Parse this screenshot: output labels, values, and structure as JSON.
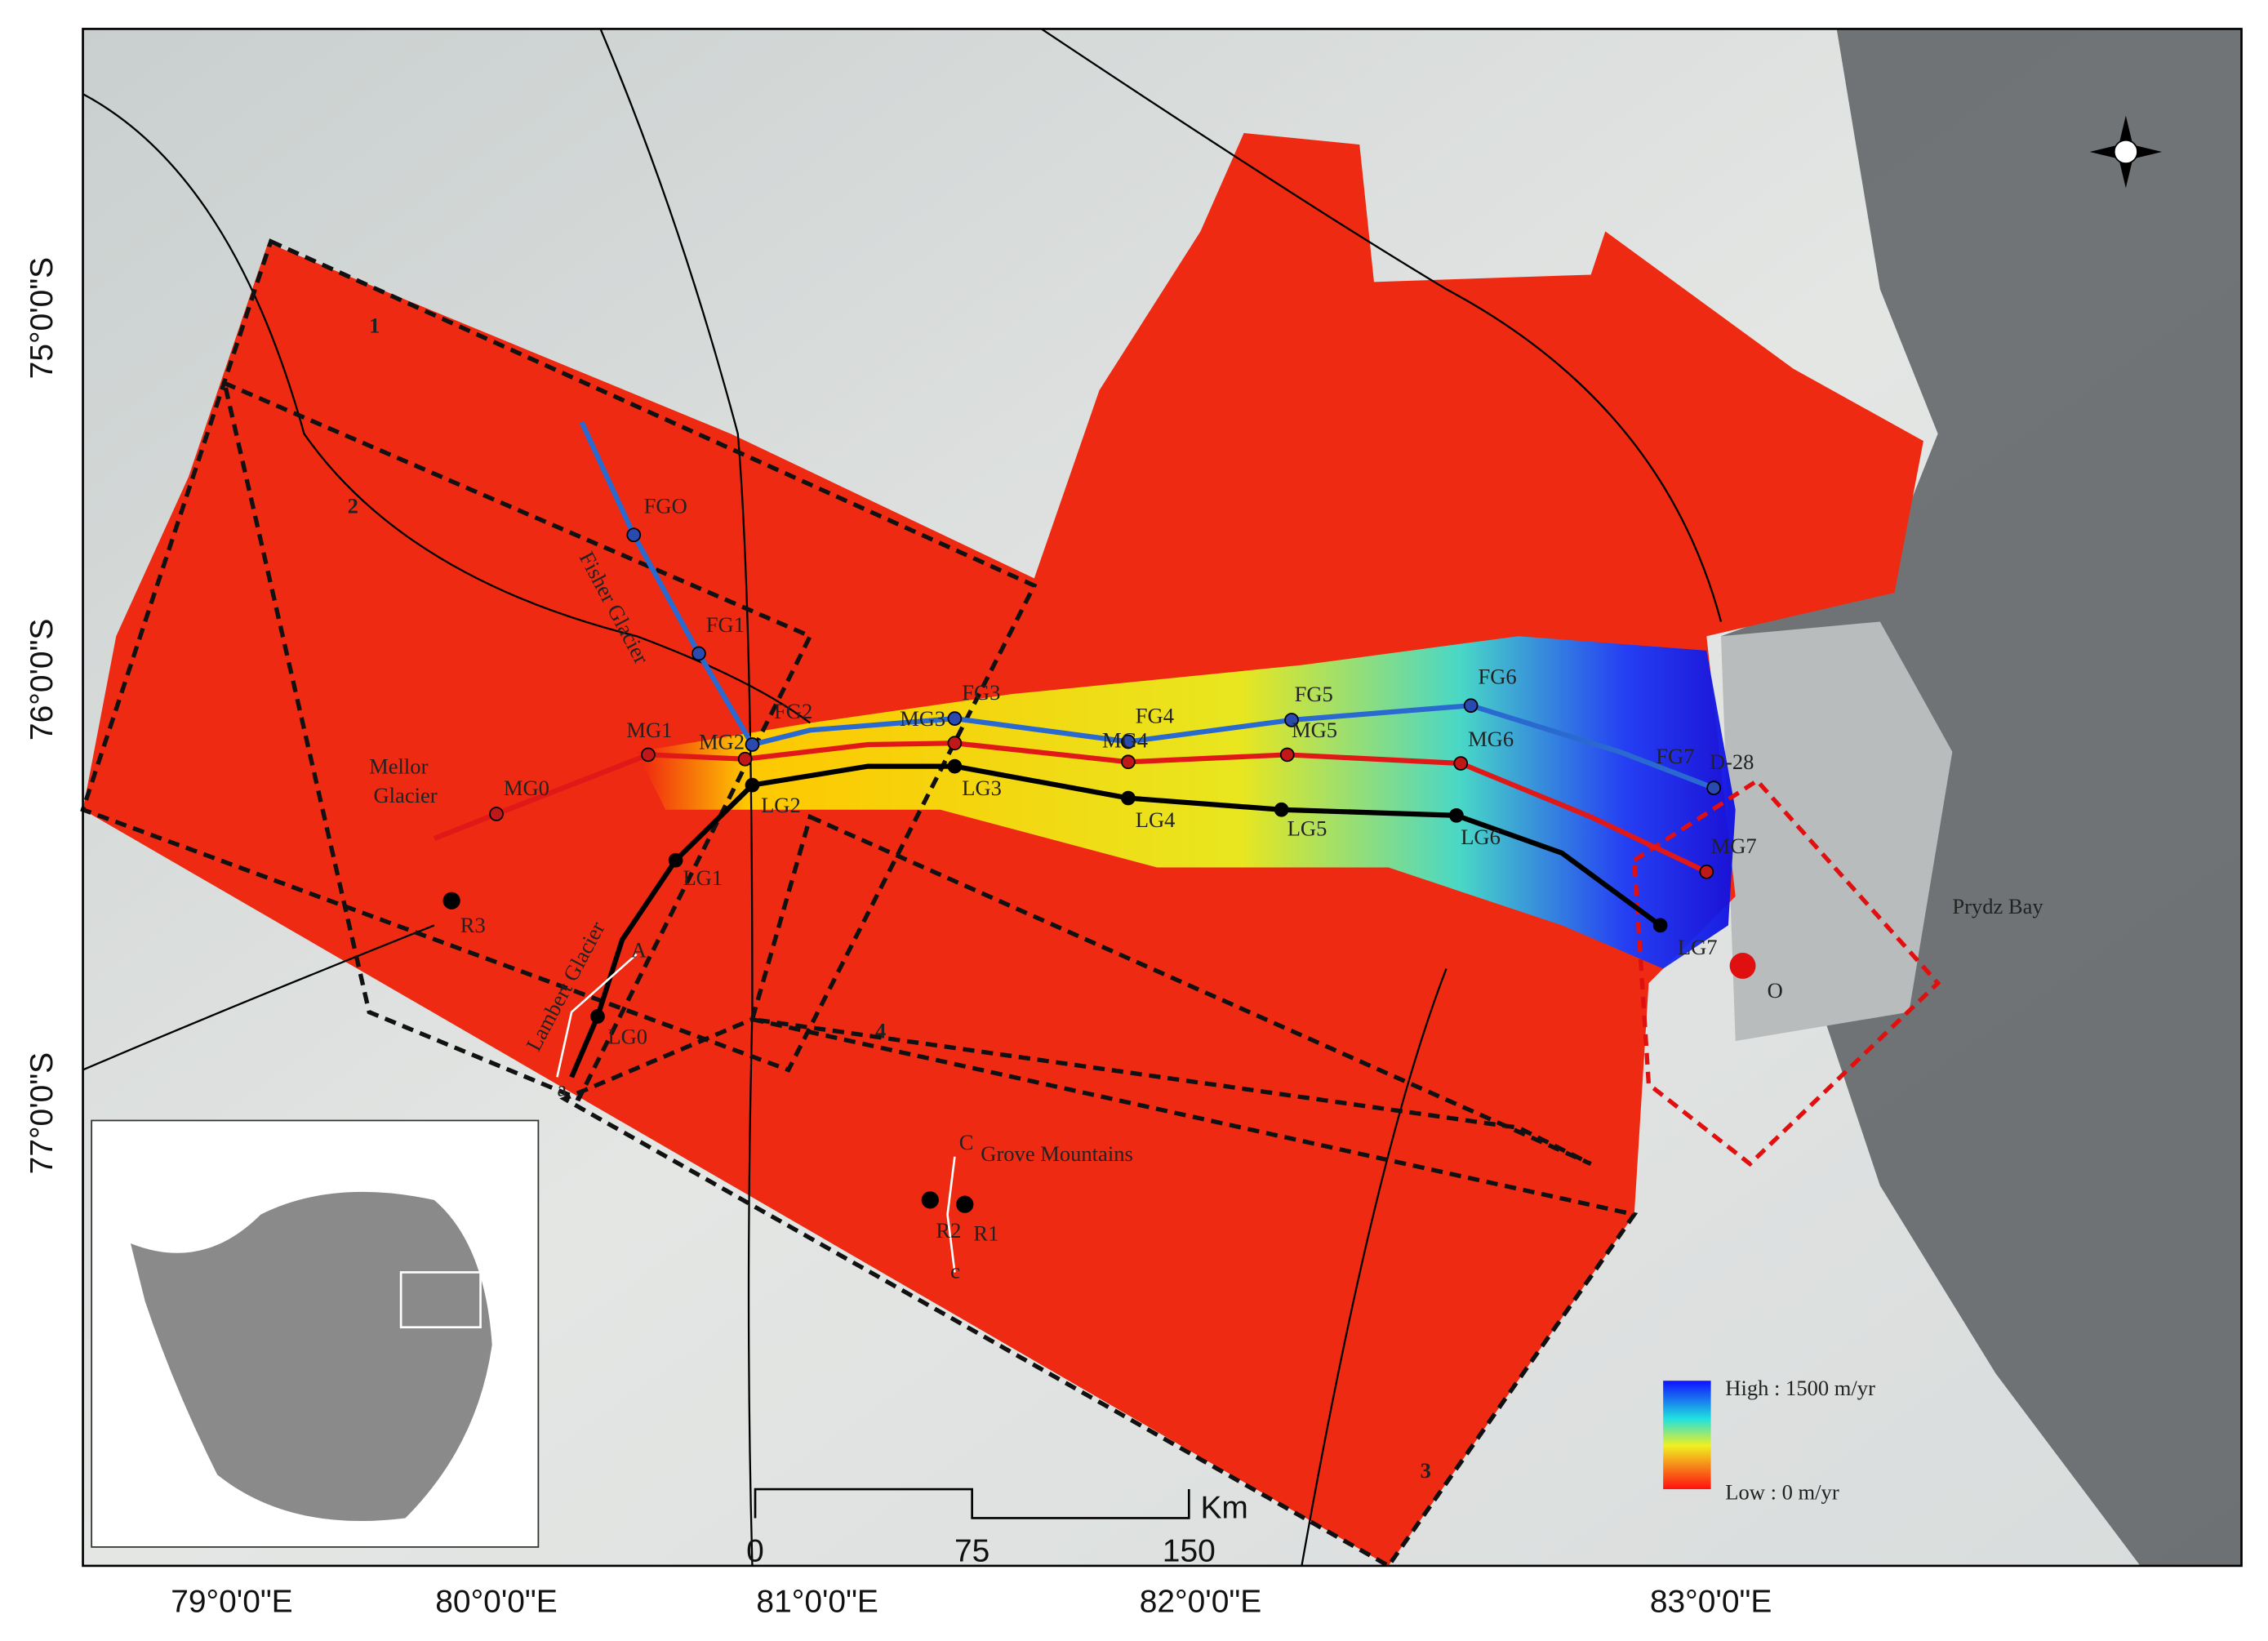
{
  "latitude_labels": [
    "75°0'0\"S",
    "76°0'0\"S",
    "77°0'0\"S"
  ],
  "longitude_labels": [
    "79°0'0\"E",
    "80°0'0\"E",
    "81°0'0\"E",
    "82°0'0\"E",
    "83°0'0\"E"
  ],
  "regions": [
    "1",
    "2",
    "3",
    "4"
  ],
  "flowlines": {
    "fg": [
      "FGO",
      "FG1",
      "FG2",
      "FG3",
      "FG4",
      "FG5",
      "FG6",
      "FG7"
    ],
    "mg": [
      "MG0",
      "MG1",
      "MG2",
      "MG3",
      "MG4",
      "MG5",
      "MG6",
      "MG7"
    ],
    "lg": [
      "LG0",
      "LG1",
      "LG2",
      "LG3",
      "LG4",
      "LG5",
      "LG6",
      "LG7"
    ]
  },
  "places": {
    "mellor": [
      "Mellor",
      "Glacier"
    ],
    "fisher": "Fisher Glacier",
    "lambert": "Lambert Glacier",
    "grove": "Grove Mountains",
    "prydz": "Prydz Bay",
    "iceberg": "D-28",
    "point_o": "O"
  },
  "sites": [
    "R1",
    "R2",
    "R3"
  ],
  "profile_ends": [
    "A",
    "a",
    "C",
    "c"
  ],
  "legend": {
    "high": "High : 1500 m/yr",
    "low": "Low : 0 m/yr"
  },
  "scale_bar": {
    "ticks": [
      "0",
      "75",
      "150"
    ],
    "unit": "Km"
  }
}
